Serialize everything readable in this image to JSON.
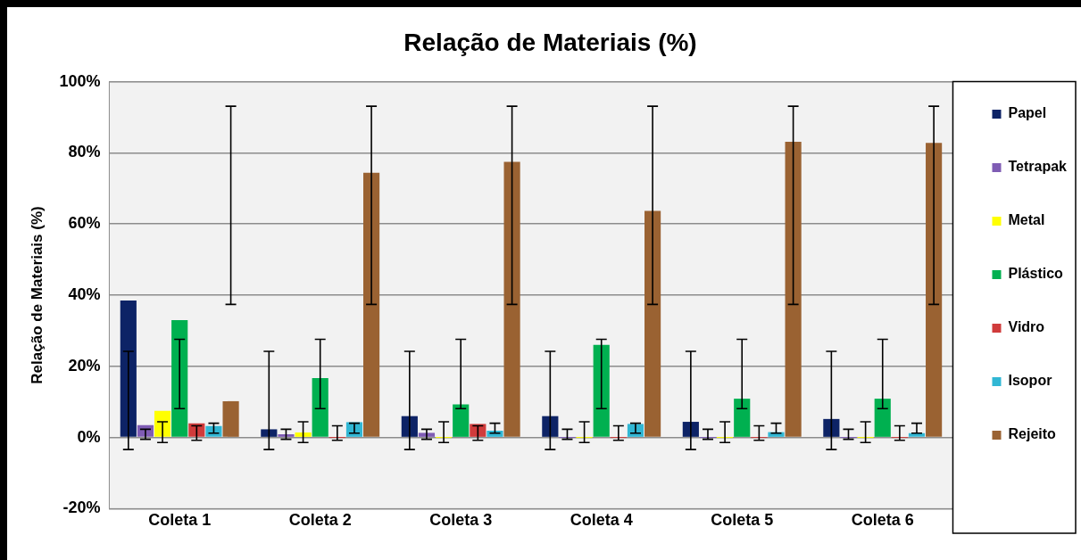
{
  "chart_data": {
    "type": "bar",
    "title": "Relação de Materiais (%)",
    "ylabel": "Relação de Materiais (%)",
    "categories": [
      "Coleta 1",
      "Coleta 2",
      "Coleta 3",
      "Coleta 4",
      "Coleta 5",
      "Coleta 6"
    ],
    "series": [
      {
        "name": "Papel",
        "color": "#0d2366",
        "values": [
          38.5,
          2.3,
          6.0,
          6.0,
          4.4,
          5.2
        ],
        "errors": [
          [
            -3.4,
            24.2
          ],
          [
            -3.4,
            24.2
          ],
          [
            -3.4,
            24.2
          ],
          [
            -3.4,
            24.2
          ],
          [
            -3.4,
            24.2
          ],
          [
            -3.4,
            24.2
          ]
        ]
      },
      {
        "name": "Tetrapak",
        "color": "#7f5cb4",
        "values": [
          3.5,
          0.9,
          1.3,
          0,
          0,
          0
        ],
        "errors": [
          [
            -0.5,
            2.3
          ],
          [
            -0.5,
            2.3
          ],
          [
            -0.5,
            2.3
          ],
          [
            -0.5,
            2.3
          ],
          [
            -0.5,
            2.3
          ],
          [
            -0.5,
            2.3
          ]
        ]
      },
      {
        "name": "Metal",
        "color": "#ffff00",
        "values": [
          7.5,
          1.4,
          0,
          0,
          0,
          0
        ],
        "errors": [
          [
            -1.4,
            4.4
          ],
          [
            -1.4,
            4.4
          ],
          [
            -1.4,
            4.4
          ],
          [
            -1.4,
            4.4
          ],
          [
            -1.4,
            4.4
          ],
          [
            -1.4,
            4.4
          ]
        ]
      },
      {
        "name": "Plástico",
        "color": "#00b050",
        "values": [
          33,
          16.7,
          9.3,
          26.0,
          10.9,
          10.9
        ],
        "errors": [
          [
            8.1,
            27.6
          ],
          [
            8.1,
            27.6
          ],
          [
            8.1,
            27.6
          ],
          [
            8.1,
            27.6
          ],
          [
            8.1,
            27.6
          ],
          [
            8.1,
            27.6
          ]
        ]
      },
      {
        "name": "Vidro",
        "color": "#d03b3b",
        "values": [
          4.0,
          0,
          3.8,
          0,
          0,
          0
        ],
        "errors": [
          [
            -0.8,
            3.3
          ],
          [
            -0.8,
            3.3
          ],
          [
            -0.8,
            3.3
          ],
          [
            -0.8,
            3.3
          ],
          [
            -0.8,
            3.3
          ],
          [
            -0.8,
            3.3
          ]
        ]
      },
      {
        "name": "Isopor",
        "color": "#31b7d4",
        "values": [
          3.2,
          4.3,
          1.9,
          3.8,
          1.5,
          1.2
        ],
        "errors": [
          [
            1.2,
            4.0
          ],
          [
            1.2,
            4.0
          ],
          [
            1.2,
            4.0
          ],
          [
            1.2,
            4.0
          ],
          [
            1.2,
            4.0
          ],
          [
            1.2,
            4.0
          ]
        ]
      },
      {
        "name": "Rejeito",
        "color": "#9a6232",
        "values": [
          10.2,
          74.4,
          77.5,
          63.7,
          83.1,
          82.8
        ],
        "errors": [
          [
            37.4,
            93.1
          ],
          [
            37.4,
            93.1
          ],
          [
            37.4,
            93.1
          ],
          [
            37.4,
            93.1
          ],
          [
            37.4,
            93.1
          ],
          [
            37.4,
            93.1
          ]
        ]
      }
    ],
    "ylim": [
      -20,
      100
    ],
    "yticks": [
      {
        "value": -20,
        "label": "-20%"
      },
      {
        "value": 0,
        "label": "0%"
      },
      {
        "value": 20,
        "label": "20%"
      },
      {
        "value": 40,
        "label": "40%"
      },
      {
        "value": 60,
        "label": "60%"
      },
      {
        "value": 80,
        "label": "80%"
      },
      {
        "value": 100,
        "label": "100%"
      }
    ],
    "grid": "y",
    "legend": "right"
  }
}
